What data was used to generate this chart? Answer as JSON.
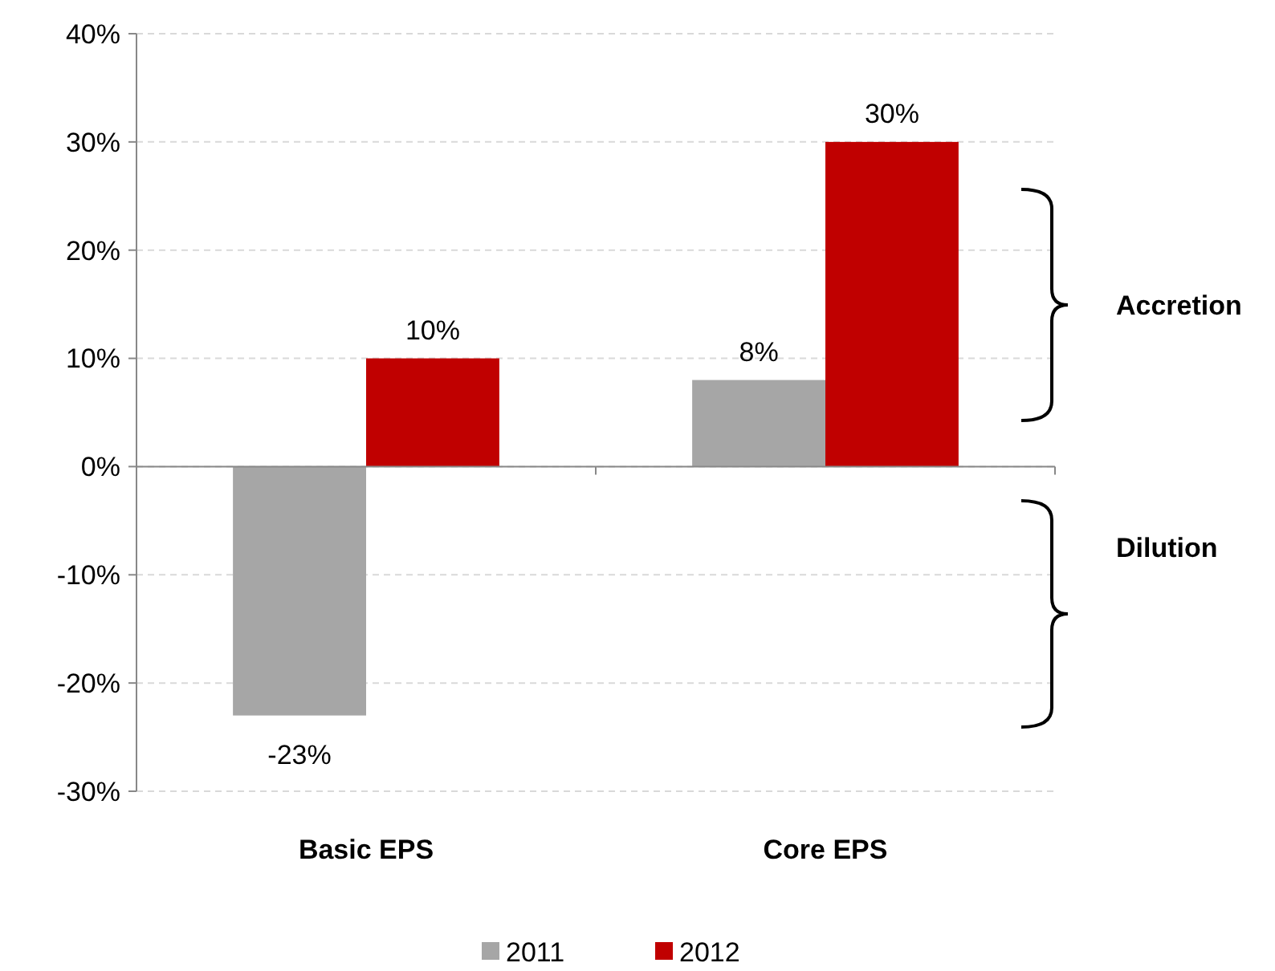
{
  "chart_data": {
    "type": "bar",
    "categories": [
      "Basic EPS",
      "Core EPS"
    ],
    "series": [
      {
        "name": "2011",
        "color": "#a6a6a6",
        "values": [
          -23,
          8
        ],
        "value_labels": [
          "-23%",
          "8%"
        ]
      },
      {
        "name": "2012",
        "color": "#c00000",
        "values": [
          10,
          30
        ],
        "value_labels": [
          "10%",
          "30%"
        ]
      }
    ],
    "ylim": [
      -30,
      40
    ],
    "yticks": [
      {
        "value": -30,
        "label": "-30%"
      },
      {
        "value": -20,
        "label": "-20%"
      },
      {
        "value": -10,
        "label": "-10%"
      },
      {
        "value": 0,
        "label": "0%"
      },
      {
        "value": 10,
        "label": "10%"
      },
      {
        "value": 20,
        "label": "20%"
      },
      {
        "value": 30,
        "label": "30%"
      },
      {
        "value": 40,
        "label": "40%"
      }
    ],
    "grid": "y",
    "legend": "bottom",
    "annotations": [
      "Accretion",
      "Dilution"
    ]
  }
}
